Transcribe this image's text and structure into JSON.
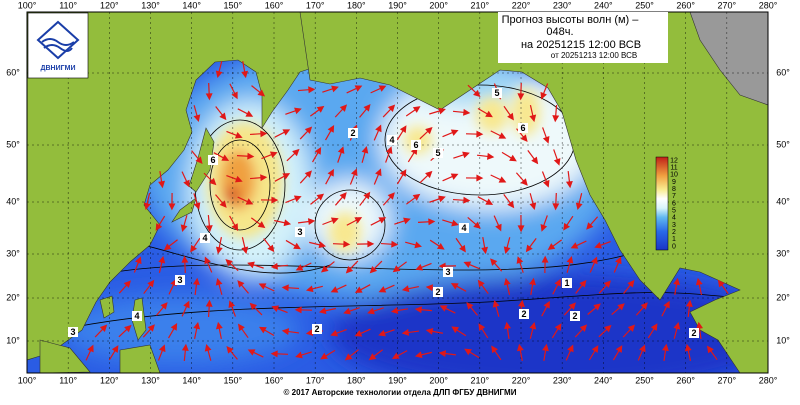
{
  "header": {
    "title_lines": [
      "Прогноз высоты волн (м) –",
      "048ч.",
      "на 20251215 12:00 ВСВ"
    ],
    "subtitle": "от 20251213 12:00 ВСВ"
  },
  "logo": {
    "label": "ДВНИГМИ"
  },
  "map": {
    "lon_labels": [
      "100°",
      "110°",
      "120°",
      "130°",
      "140°",
      "150°",
      "160°",
      "170°",
      "180°",
      "190°",
      "200°",
      "210°",
      "220°",
      "230°",
      "240°",
      "250°",
      "260°",
      "270°",
      "280°"
    ],
    "lat_labels": [
      "10°",
      "20°",
      "30°",
      "40°",
      "50°",
      "60°"
    ],
    "contour_labels": [
      "6",
      "4",
      "3",
      "2",
      "5",
      "6",
      "5",
      "6",
      "4",
      "3",
      "4",
      "2",
      "2",
      "1",
      "2",
      "3",
      "2",
      "4",
      "3",
      "2"
    ]
  },
  "colorbar": {
    "labels": [
      "0",
      "1",
      "2",
      "3",
      "4",
      "5",
      "6",
      "7",
      "8",
      "9",
      "10",
      "11",
      "12"
    ]
  },
  "footer": {
    "copyright": "© 2017 Авторские технологии отдела ДЛП ФГБУ ДВНИГМИ"
  }
}
